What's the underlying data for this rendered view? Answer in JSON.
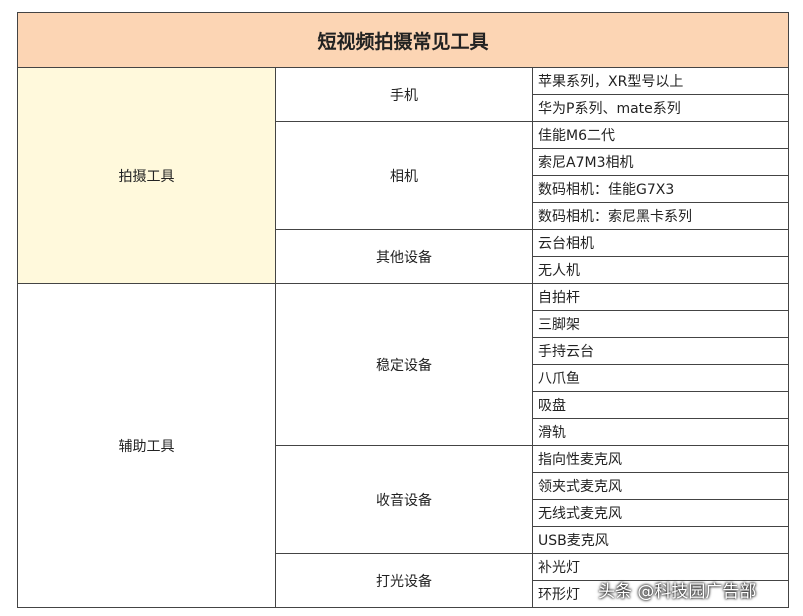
{
  "table": {
    "title": "短视频拍摄常见工具",
    "groups": [
      {
        "label": "拍摄工具",
        "subgroups": [
          {
            "label": "手机",
            "items": [
              "苹果系列，XR型号以上",
              "华为P系列、mate系列"
            ]
          },
          {
            "label": "相机",
            "items": [
              "佳能M6二代",
              "索尼A7M3相机",
              "数码相机：佳能G7X3",
              "数码相机：索尼黑卡系列"
            ]
          },
          {
            "label": "其他设备",
            "items": [
              "云台相机",
              "无人机"
            ]
          }
        ]
      },
      {
        "label": "辅助工具",
        "subgroups": [
          {
            "label": "稳定设备",
            "items": [
              "自拍杆",
              "三脚架",
              "手持云台",
              "八爪鱼",
              "吸盘",
              "滑轨"
            ]
          },
          {
            "label": "收音设备",
            "items": [
              "指向性麦克风",
              "领夹式麦克风",
              "无线式麦克风",
              "USB麦克风"
            ]
          },
          {
            "label": "打光设备",
            "items": [
              "补光灯",
              "环形灯"
            ]
          }
        ]
      }
    ]
  },
  "watermark": "头条 @科技园广告部"
}
